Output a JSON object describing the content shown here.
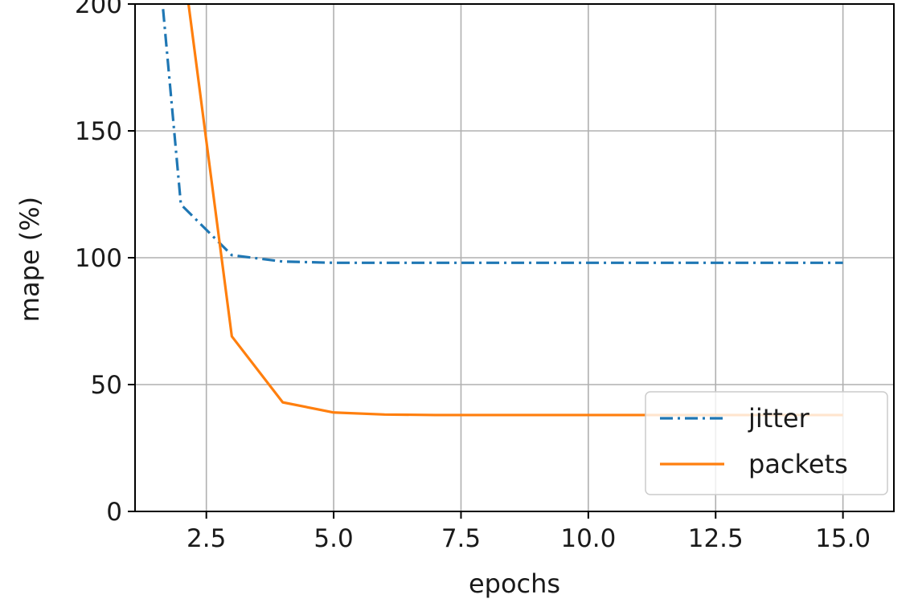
{
  "chart_data": {
    "type": "line",
    "title": "",
    "xlabel": "epochs",
    "ylabel": "mape (%)",
    "xlim": [
      1.1,
      16.0
    ],
    "ylim": [
      0,
      200
    ],
    "grid": true,
    "legend_position": "bottom-right",
    "x_ticks": [
      2.5,
      5.0,
      7.5,
      10.0,
      12.5,
      15.0
    ],
    "x_tick_labels": [
      "2.5",
      "5.0",
      "7.5",
      "10.0",
      "12.5",
      "15.0"
    ],
    "y_ticks": [
      0,
      50,
      100,
      150,
      200
    ],
    "y_tick_labels": [
      "0",
      "50",
      "100",
      "150",
      "200"
    ],
    "series": [
      {
        "name": "jitter",
        "color": "#1f77b4",
        "line_style": "dash-dot",
        "x": [
          1.65,
          2,
          3,
          4,
          5,
          6,
          7,
          8,
          9,
          10,
          11,
          12,
          13,
          14,
          15
        ],
        "y": [
          198,
          121,
          101,
          98.5,
          98,
          98,
          98,
          98,
          98,
          98,
          98,
          98,
          98,
          98,
          98
        ]
      },
      {
        "name": "packets",
        "color": "#ff7f0e",
        "line_style": "solid",
        "x": [
          2.15,
          3,
          4,
          5,
          6,
          7,
          8,
          9,
          10,
          11,
          12,
          13,
          14,
          15
        ],
        "y": [
          200,
          69,
          43,
          39,
          38.2,
          38,
          38,
          38,
          38,
          38,
          38,
          38,
          38,
          38
        ]
      }
    ]
  }
}
